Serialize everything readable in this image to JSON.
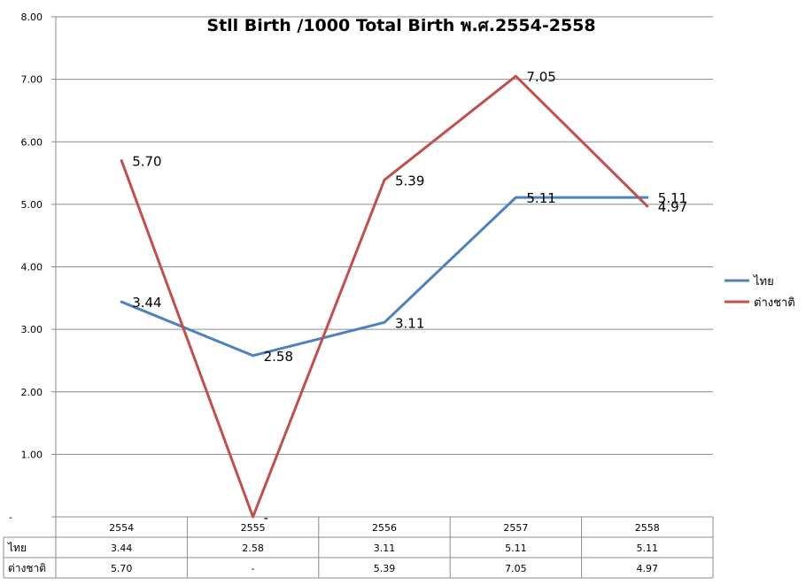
{
  "chart_data": {
    "type": "line",
    "title": "Stll Birth /1000 Total Birth พ.ศ.2554-2558",
    "xlabel": "",
    "ylabel": "",
    "ylim": [
      0,
      8
    ],
    "y_ticks": [
      "-",
      "1.00",
      "2.00",
      "3.00",
      "4.00",
      "5.00",
      "6.00",
      "7.00",
      "8.00"
    ],
    "categories": [
      "2554",
      "2555",
      "2556",
      "2557",
      "2558"
    ],
    "grid": true,
    "legend": "right",
    "data_table": true,
    "series": [
      {
        "name": "ไทย",
        "color": "#4F81BD",
        "values": [
          3.44,
          2.58,
          3.11,
          5.11,
          5.11
        ],
        "labels": [
          "3.44",
          "2.58",
          "3.11",
          "5.11",
          "5.11"
        ]
      },
      {
        "name": "ต่างชาติ",
        "color": "#C0504D",
        "values": [
          5.7,
          0,
          5.39,
          7.05,
          4.97
        ],
        "labels": [
          "5.70",
          "-",
          "5.39",
          "7.05",
          "4.97"
        ]
      }
    ]
  }
}
